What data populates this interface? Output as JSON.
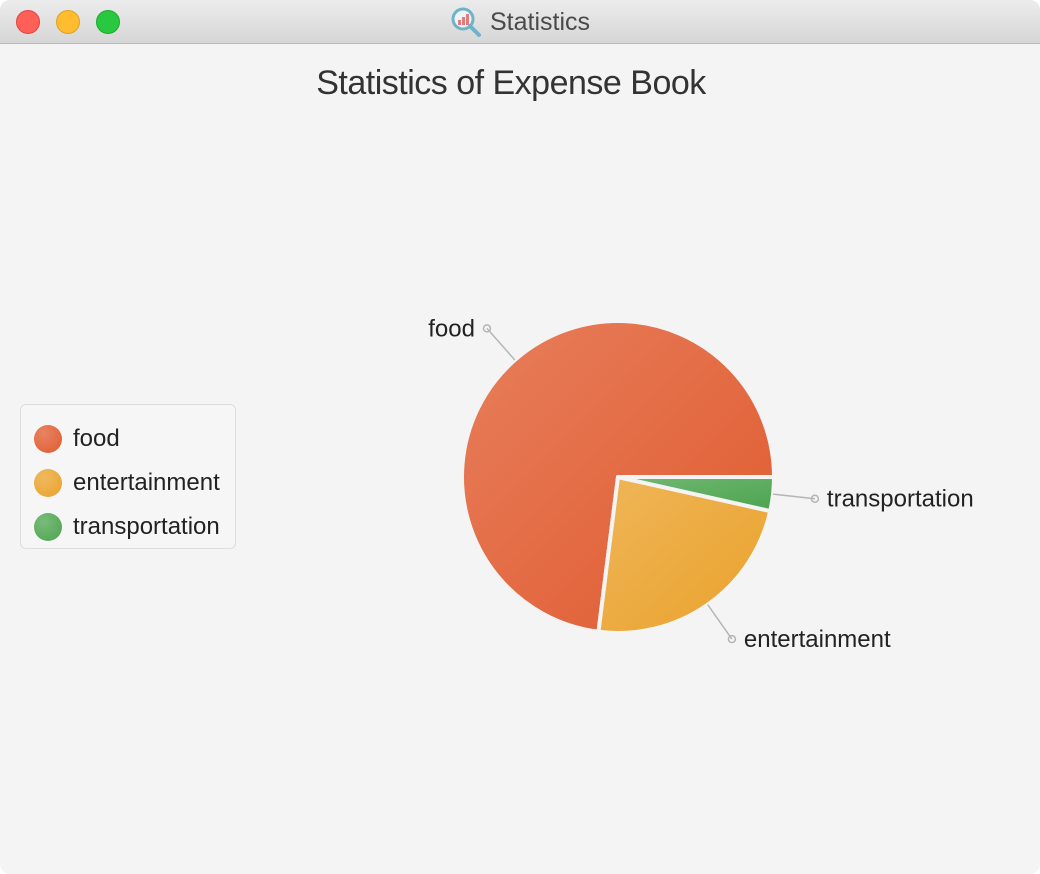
{
  "window": {
    "title": "Statistics",
    "app_icon": "magnifier-chart-icon"
  },
  "chart_data": {
    "type": "pie",
    "title": "Statistics of Expense Book",
    "categories": [
      "food",
      "entertainment",
      "transportation"
    ],
    "values": [
      73,
      23.5,
      3.5
    ],
    "colors": [
      "#e05a2e",
      "#eaa12a",
      "#4ca44e"
    ],
    "legend": "left",
    "slice_labels": true,
    "start_angle_deg": 0,
    "direction": "counterclockwise"
  }
}
